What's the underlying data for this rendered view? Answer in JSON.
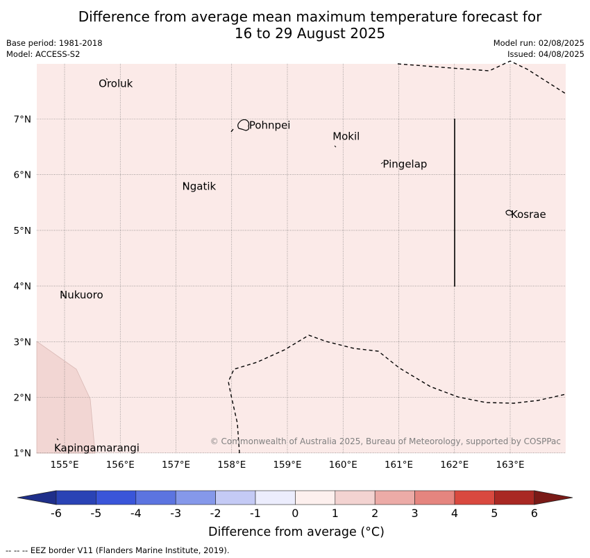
{
  "title": {
    "line1": "Difference from average mean maximum temperature forecast for",
    "line2": "16 to 29 August 2025"
  },
  "info": {
    "base_period": "Base period: 1981-2018",
    "model": "Model: ACCESS-S2",
    "model_run": "Model run: 02/08/2025",
    "issued": "Issued: 04/08/2025"
  },
  "map": {
    "background_color": "#fbeae8",
    "land_shade_color": "#f2d6d3",
    "gridlines": true,
    "lon_ticks": [
      "155°E",
      "156°E",
      "157°E",
      "158°E",
      "159°E",
      "160°E",
      "161°E",
      "162°E",
      "163°E"
    ],
    "lat_ticks": [
      "7°N",
      "6°N",
      "5°N",
      "4°N",
      "3°N",
      "2°N",
      "1°N"
    ],
    "places": [
      {
        "name": "Oroluk",
        "lon": 155.6,
        "lat": 7.65
      },
      {
        "name": "Pohnpei",
        "lon": 158.3,
        "lat": 6.9
      },
      {
        "name": "Mokil",
        "lon": 159.8,
        "lat": 6.7
      },
      {
        "name": "Pingelap",
        "lon": 160.7,
        "lat": 6.2
      },
      {
        "name": "Ngatik",
        "lon": 157.1,
        "lat": 5.8
      },
      {
        "name": "Kosrae",
        "lon": 163.0,
        "lat": 5.3
      },
      {
        "name": "Nukuoro",
        "lon": 154.9,
        "lat": 3.85
      },
      {
        "name": "Kapingamarangi",
        "lon": 154.8,
        "lat": 1.1
      }
    ],
    "copyright": "© Commonwealth of Australia 2025, Bureau of Meteorology, supported by COSPPac"
  },
  "colorbar": {
    "labels": [
      "-6",
      "-5",
      "-4",
      "-3",
      "-2",
      "-1",
      "0",
      "1",
      "2",
      "3",
      "4",
      "5",
      "6"
    ],
    "colors": [
      "#1f2f8a",
      "#2a43b5",
      "#3a55d9",
      "#5c74e0",
      "#8598ea",
      "#c4caf5",
      "#ecedfd",
      "#fdf0ee",
      "#f3d3d1",
      "#ecaba7",
      "#e5857f",
      "#d9493f",
      "#a92823",
      "#7a1a17"
    ],
    "title": "Difference from average (°C)"
  },
  "legend_note": "--  --  -- EEZ border V11 (Flanders Marine Institute, 2019)."
}
